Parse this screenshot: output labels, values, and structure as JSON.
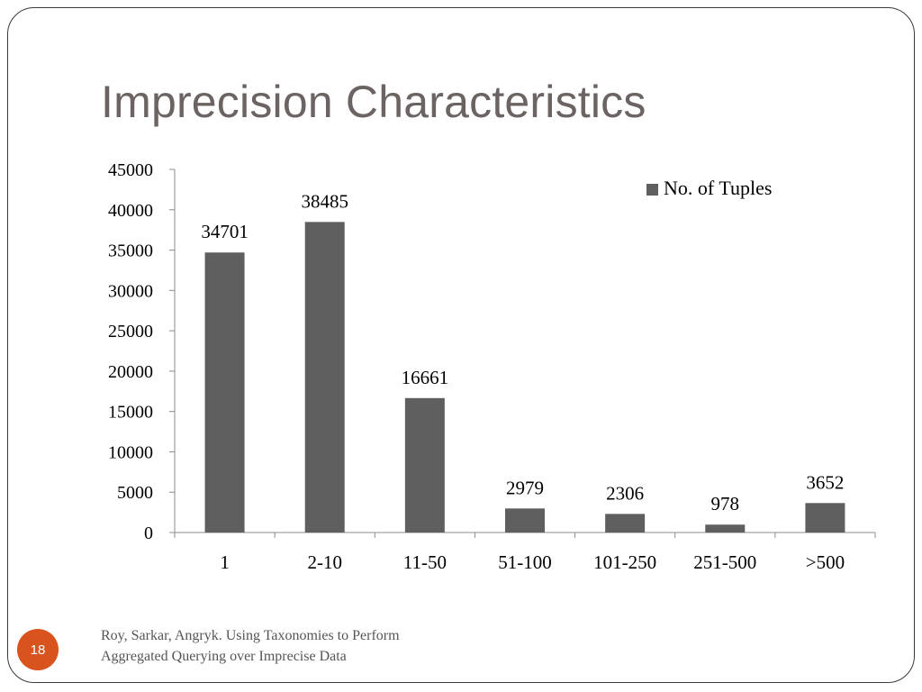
{
  "slide": {
    "title": "Imprecision Characteristics",
    "footer_line1": "Roy, Sarkar, Angryk. Using Taxonomies to Perform",
    "footer_line2": "Aggregated Querying over Imprecise Data",
    "page_number": "18"
  },
  "colors": {
    "bar": "#5f5f5f",
    "accent": "#d9531e",
    "title": "#6b6462"
  },
  "chart_data": {
    "type": "bar",
    "title": "",
    "xlabel": "",
    "ylabel": "",
    "categories": [
      "1",
      "2-10",
      "11-50",
      "51-100",
      "101-250",
      "251-500",
      ">500"
    ],
    "series": [
      {
        "name": "No. of Tuples",
        "values": [
          34701,
          38485,
          16661,
          2979,
          2306,
          978,
          3652
        ]
      }
    ],
    "ylim": [
      0,
      45000
    ],
    "yticks": [
      0,
      5000,
      10000,
      15000,
      20000,
      25000,
      30000,
      35000,
      40000,
      45000
    ],
    "grid": false,
    "legend": "top-right",
    "data_labels": true
  }
}
